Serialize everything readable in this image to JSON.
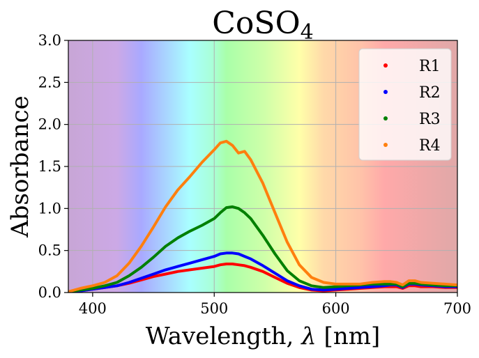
{
  "chart_data": {
    "type": "line",
    "title": "CoSO",
    "title_subscript": "4",
    "xlabel": "Wavelength, ",
    "xlabel_symbol": "λ",
    "xlabel_unit": " [nm]",
    "ylabel": "Absorbance",
    "xlim": [
      380,
      700
    ],
    "ylim": [
      0,
      3.0
    ],
    "xticks": [
      400,
      500,
      600,
      700
    ],
    "yticks": [
      0.0,
      0.5,
      1.0,
      1.5,
      2.0,
      2.5,
      3.0
    ],
    "xtick_labels": [
      "400",
      "500",
      "600",
      "700"
    ],
    "ytick_labels": [
      "0.0",
      "0.5",
      "1.0",
      "1.5",
      "2.0",
      "2.5",
      "3.0"
    ],
    "grid": true,
    "legend_position": "top-right",
    "background": "visible spectrum gradient",
    "spectrum_colors": [
      {
        "nm": 380,
        "color": "#c8a6d6"
      },
      {
        "nm": 420,
        "color": "#cca9e6"
      },
      {
        "nm": 440,
        "color": "#a9a9ff"
      },
      {
        "nm": 460,
        "color": "#a9d4ff"
      },
      {
        "nm": 480,
        "color": "#a9ffff"
      },
      {
        "nm": 500,
        "color": "#a9ffd4"
      },
      {
        "nm": 510,
        "color": "#a9ffa9"
      },
      {
        "nm": 540,
        "color": "#cdffa9"
      },
      {
        "nm": 570,
        "color": "#ffffa9"
      },
      {
        "nm": 590,
        "color": "#ffd9a9"
      },
      {
        "nm": 620,
        "color": "#ffc3a9"
      },
      {
        "nm": 640,
        "color": "#ffa9a9"
      },
      {
        "nm": 700,
        "color": "#e0a8a8"
      }
    ],
    "x": [
      380,
      390,
      400,
      410,
      420,
      430,
      440,
      450,
      460,
      470,
      480,
      490,
      500,
      505,
      510,
      515,
      520,
      525,
      530,
      540,
      550,
      560,
      570,
      580,
      590,
      600,
      610,
      620,
      630,
      640,
      645,
      650,
      655,
      660,
      665,
      670,
      680,
      690,
      700
    ],
    "series": [
      {
        "name": "R1",
        "color": "#ff0000",
        "values": [
          0.0,
          0.02,
          0.04,
          0.06,
          0.08,
          0.11,
          0.15,
          0.19,
          0.22,
          0.25,
          0.27,
          0.29,
          0.31,
          0.33,
          0.34,
          0.34,
          0.33,
          0.32,
          0.3,
          0.25,
          0.18,
          0.11,
          0.06,
          0.03,
          0.02,
          0.03,
          0.04,
          0.05,
          0.06,
          0.07,
          0.07,
          0.07,
          0.05,
          0.08,
          0.08,
          0.07,
          0.07,
          0.06,
          0.06
        ]
      },
      {
        "name": "R2",
        "color": "#0000ff",
        "values": [
          0.0,
          0.02,
          0.04,
          0.06,
          0.08,
          0.12,
          0.17,
          0.22,
          0.27,
          0.31,
          0.35,
          0.39,
          0.43,
          0.46,
          0.47,
          0.47,
          0.46,
          0.43,
          0.4,
          0.32,
          0.23,
          0.14,
          0.08,
          0.04,
          0.03,
          0.04,
          0.05,
          0.06,
          0.07,
          0.08,
          0.09,
          0.09,
          0.06,
          0.1,
          0.1,
          0.09,
          0.08,
          0.07,
          0.07
        ]
      },
      {
        "name": "R3",
        "color": "#008000",
        "values": [
          0.01,
          0.03,
          0.05,
          0.08,
          0.12,
          0.2,
          0.3,
          0.42,
          0.55,
          0.65,
          0.73,
          0.8,
          0.88,
          0.95,
          1.01,
          1.02,
          1.0,
          0.95,
          0.88,
          0.68,
          0.46,
          0.26,
          0.14,
          0.08,
          0.06,
          0.07,
          0.08,
          0.09,
          0.1,
          0.1,
          0.1,
          0.1,
          0.07,
          0.11,
          0.11,
          0.1,
          0.09,
          0.08,
          0.08
        ]
      },
      {
        "name": "R4",
        "color": "#ff7f0e",
        "values": [
          0.01,
          0.05,
          0.08,
          0.12,
          0.2,
          0.35,
          0.55,
          0.78,
          1.02,
          1.22,
          1.38,
          1.55,
          1.7,
          1.78,
          1.8,
          1.75,
          1.66,
          1.68,
          1.58,
          1.3,
          0.95,
          0.6,
          0.33,
          0.18,
          0.12,
          0.1,
          0.1,
          0.1,
          0.12,
          0.13,
          0.13,
          0.12,
          0.09,
          0.14,
          0.14,
          0.12,
          0.11,
          0.1,
          0.09
        ]
      }
    ]
  }
}
